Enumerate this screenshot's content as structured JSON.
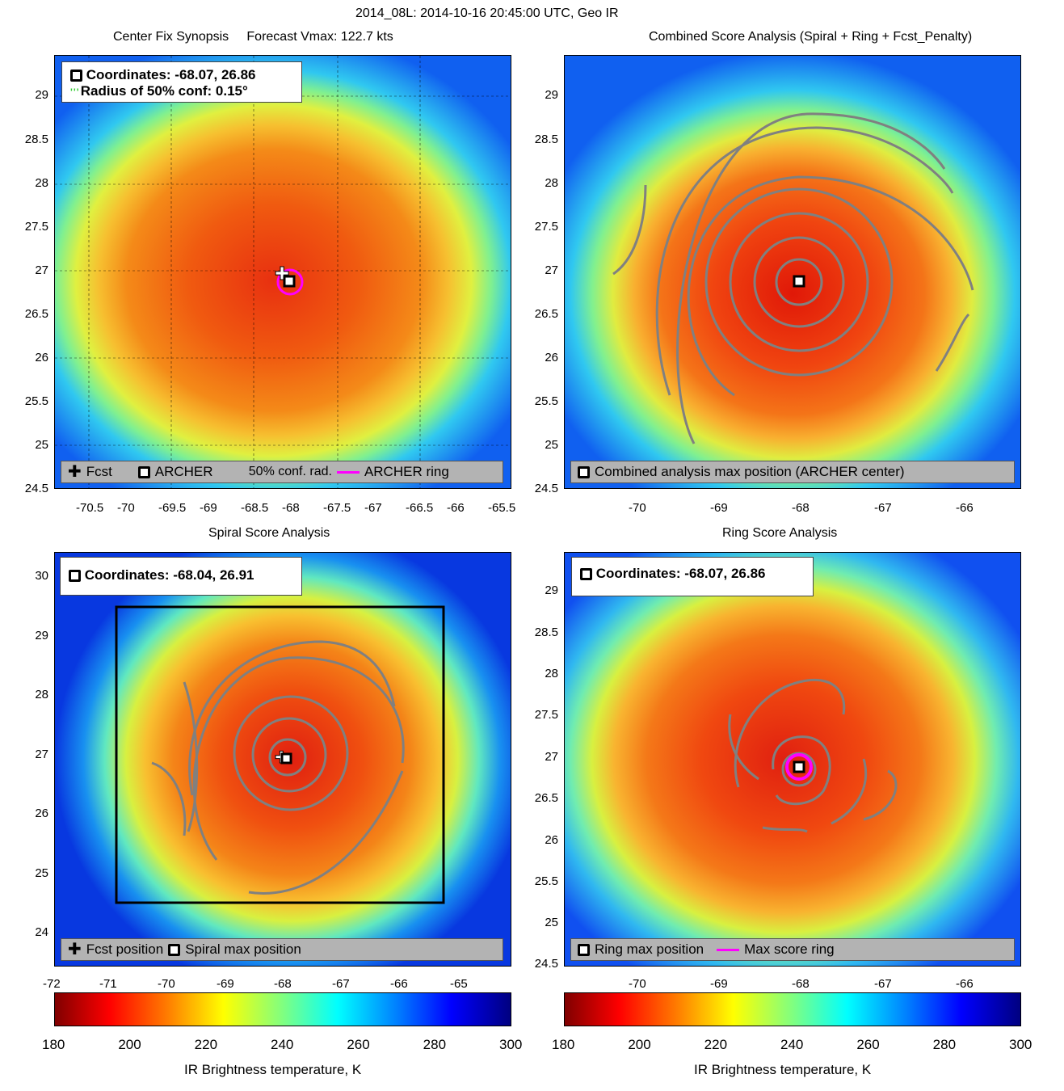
{
  "main_title": "2014_08L: 2014-10-16 20:45:00 UTC, Geo IR",
  "panels": {
    "synopsis": {
      "title": "Center Fix Synopsis     Forecast Vmax: 122.7 kts",
      "info_line1": "Coordinates: -68.07, 26.86",
      "info_line2": "Radius of 50% conf: 0.15°",
      "legend": {
        "fcst": "Fcst",
        "archer": "ARCHER",
        "conf": "50% conf. rad.",
        "ring": "ARCHER ring"
      },
      "xticks": [
        "-70.5",
        "-70",
        "-69.5",
        "-69",
        "-68.5",
        "-68",
        "-67.5",
        "-67",
        "-66.5",
        "-66",
        "-65.5"
      ],
      "yticks": [
        "29",
        "28.5",
        "28",
        "27.5",
        "27",
        "26.5",
        "26",
        "25.5",
        "25",
        "24.5"
      ]
    },
    "combined": {
      "title": "Combined Score Analysis (Spiral + Ring + Fcst_Penalty)",
      "legend": "Combined analysis max position (ARCHER center)",
      "xticks": [
        "-70",
        "-69",
        "-68",
        "-67",
        "-66"
      ],
      "yticks": [
        "29",
        "28.5",
        "28",
        "27.5",
        "27",
        "26.5",
        "26",
        "25.5",
        "25",
        "24.5"
      ]
    },
    "spiral": {
      "title": "Spiral Score Analysis",
      "info_line1": "Coordinates: -68.04, 26.91",
      "legend": {
        "fcst": "Fcst position",
        "max": "Spiral max position"
      },
      "xticks": [
        "-72",
        "-71",
        "-70",
        "-69",
        "-68",
        "-67",
        "-66",
        "-65"
      ],
      "yticks": [
        "30",
        "29",
        "28",
        "27",
        "26",
        "25",
        "24"
      ]
    },
    "ring": {
      "title": "Ring Score Analysis",
      "info_line1": "Coordinates: -68.07, 26.86",
      "legend": {
        "max": "Ring max position",
        "ring": "Max score ring"
      },
      "xticks": [
        "-70",
        "-69",
        "-68",
        "-67",
        "-66"
      ],
      "yticks": [
        "29",
        "28.5",
        "28",
        "27.5",
        "27",
        "26.5",
        "26",
        "25.5",
        "25",
        "24.5"
      ]
    }
  },
  "colorbar": {
    "ticks": [
      "180",
      "200",
      "220",
      "240",
      "260",
      "280",
      "300"
    ],
    "label": "IR Brightness temperature, K"
  },
  "chart_data": [
    {
      "type": "heatmap",
      "title": "Center Fix Synopsis",
      "center": {
        "lon": -68.07,
        "lat": 26.86
      },
      "forecast_vmax_kts": 122.7,
      "radius_50_conf_deg": 0.15,
      "xlim": [
        -70.9,
        -65.4
      ],
      "ylim": [
        24.5,
        29.5
      ]
    },
    {
      "type": "heatmap",
      "title": "Combined Score Analysis (Spiral + Ring + Fcst_Penalty)",
      "center": {
        "lon": -68.07,
        "lat": 26.86
      },
      "xlim": [
        -71,
        -65.3
      ],
      "ylim": [
        24.5,
        29.5
      ]
    },
    {
      "type": "heatmap",
      "title": "Spiral Score Analysis",
      "center": {
        "lon": -68.04,
        "lat": 26.91
      },
      "xlim": [
        -72,
        -64.4
      ],
      "ylim": [
        23.5,
        30.3
      ]
    },
    {
      "type": "heatmap",
      "title": "Ring Score Analysis",
      "center": {
        "lon": -68.07,
        "lat": 26.86
      },
      "xlim": [
        -71,
        -65.3
      ],
      "ylim": [
        24.5,
        29.5
      ]
    },
    {
      "type": "heatmap",
      "colorbar_range": [
        180,
        300
      ],
      "colorbar_label": "IR Brightness temperature, K"
    }
  ]
}
